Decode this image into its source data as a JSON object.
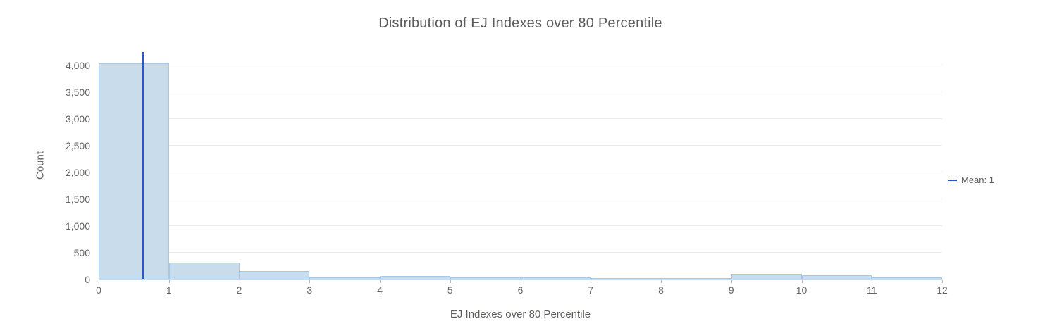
{
  "chart_data": {
    "type": "bar",
    "subtype": "histogram",
    "title": "Distribution of EJ Indexes over 80 Percentile",
    "xlabel": "EJ Indexes over 80 Percentile",
    "ylabel": "Count",
    "bin_edges": [
      0,
      1,
      2,
      3,
      4,
      5,
      6,
      7,
      8,
      9,
      10,
      11,
      12
    ],
    "values": [
      4040,
      320,
      155,
      35,
      70,
      35,
      45,
      25,
      20,
      105,
      80,
      40
    ],
    "xticks": [
      0,
      1,
      2,
      3,
      4,
      5,
      6,
      7,
      8,
      9,
      10,
      11,
      12
    ],
    "yticks": [
      0,
      500,
      1000,
      1500,
      2000,
      2500,
      3000,
      3500,
      4000
    ],
    "ytick_labels": [
      "0",
      "500",
      "1,000",
      "1,500",
      "2,000",
      "2,500",
      "3,000",
      "3,500",
      "4,000"
    ],
    "xlim": [
      0,
      12
    ],
    "ylim": [
      0,
      4250
    ],
    "grid": true,
    "mean_line": {
      "x": 0.63,
      "label": "Mean: 1"
    },
    "legend": {
      "position": "right",
      "items": [
        {
          "label": "Mean: 1",
          "marker": "line",
          "color": "#2c55cd"
        }
      ]
    },
    "colors": {
      "bar_fill": "#c8dcec",
      "bar_border": "#a9c7e0",
      "mean_line": "#2c55cd",
      "grid": "#ececec",
      "axis": "#d6d6d6",
      "tick": "#b5b5b5",
      "text": "#605e5c",
      "title": "#5a5a5a"
    }
  }
}
